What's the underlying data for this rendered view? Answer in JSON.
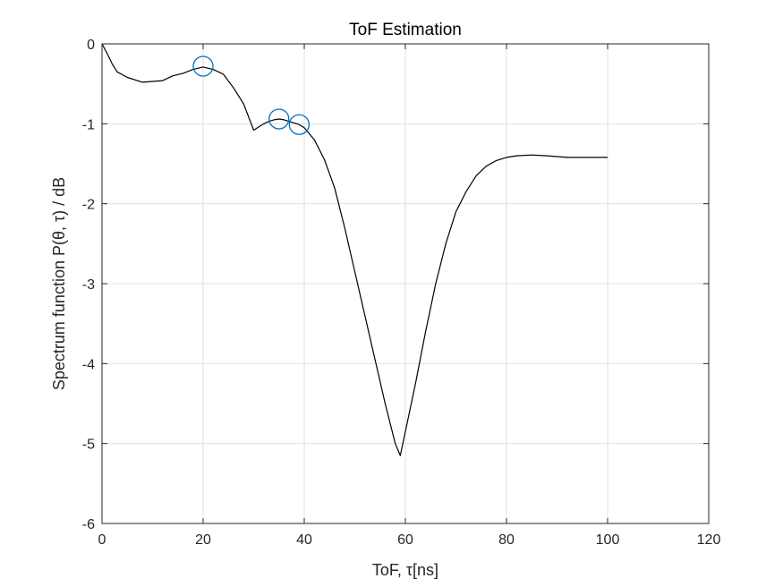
{
  "chart_data": {
    "type": "line",
    "title": "ToF Estimation",
    "xlabel": "ToF, τ[ns]",
    "ylabel": "Spectrum function P(θ, τ)  / dB",
    "xlim": [
      0,
      120
    ],
    "ylim": [
      -6,
      0
    ],
    "xticks": [
      0,
      20,
      40,
      60,
      80,
      100,
      120
    ],
    "yticks": [
      0,
      -1,
      -2,
      -3,
      -4,
      -5,
      -6
    ],
    "xtick_labels": [
      "0",
      "20",
      "40",
      "60",
      "80",
      "100",
      "120"
    ],
    "ytick_labels": [
      "0",
      "-1",
      "-2",
      "-3",
      "-4",
      "-5",
      "-6"
    ],
    "grid": true,
    "series": [
      {
        "color": "#000000",
        "x": [
          0,
          1,
          2,
          3,
          5,
          8,
          10,
          12,
          14,
          16,
          18,
          20,
          22,
          24,
          26,
          28,
          30,
          31,
          32,
          33,
          34,
          35,
          36,
          37,
          38,
          39,
          40,
          42,
          44,
          46,
          48,
          50,
          52,
          54,
          56,
          58,
          59,
          60,
          62,
          64,
          66,
          68,
          70,
          72,
          74,
          76,
          78,
          80,
          82,
          85,
          88,
          92,
          95,
          100
        ],
        "y": [
          0,
          -0.12,
          -0.25,
          -0.35,
          -0.42,
          -0.48,
          -0.47,
          -0.46,
          -0.4,
          -0.37,
          -0.32,
          -0.29,
          -0.32,
          -0.38,
          -0.55,
          -0.75,
          -1.08,
          -1.04,
          -1.0,
          -0.97,
          -0.95,
          -0.94,
          -0.95,
          -0.97,
          -0.99,
          -1.01,
          -1.05,
          -1.2,
          -1.45,
          -1.8,
          -2.3,
          -2.85,
          -3.4,
          -3.95,
          -4.5,
          -5.0,
          -5.15,
          -4.85,
          -4.25,
          -3.6,
          -3.0,
          -2.5,
          -2.1,
          -1.85,
          -1.65,
          -1.53,
          -1.46,
          -1.42,
          -1.4,
          -1.39,
          -1.4,
          -1.42,
          -1.42,
          -1.42
        ]
      }
    ],
    "markers": {
      "color": "#0072BD",
      "x": [
        20,
        35,
        39
      ],
      "y": [
        -0.28,
        -0.94,
        -1.01
      ]
    }
  }
}
